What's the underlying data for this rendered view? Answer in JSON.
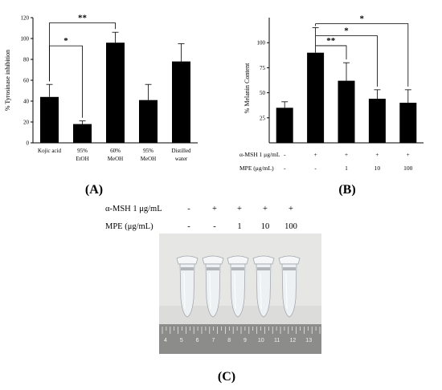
{
  "chart_data": [
    {
      "type": "bar",
      "panel": "(A)",
      "ylabel": "% Tyrosinase inhibition",
      "ylim": [
        0,
        120
      ],
      "yticks": [
        "0",
        "20",
        "40",
        "60",
        "80",
        "100",
        "120"
      ],
      "categories": [
        "Kojic acid",
        "95% EtOH",
        "60% MeOH",
        "95% MeOH",
        "Distilled water"
      ],
      "category_lines": [
        [
          "Kojic acid"
        ],
        [
          "95%",
          "EtOH"
        ],
        [
          "60%",
          "MeOH"
        ],
        [
          "95%",
          "MeOH"
        ],
        [
          "Distilled",
          "water"
        ]
      ],
      "values": [
        44,
        18,
        96,
        41,
        78
      ],
      "errors": [
        12,
        3,
        10,
        15,
        17
      ],
      "significance": [
        {
          "from": 0,
          "to": 1,
          "label": "*",
          "level": 93
        },
        {
          "from": 0,
          "to": 2,
          "label": "**",
          "level": 115
        }
      ]
    },
    {
      "type": "bar",
      "panel": "(B)",
      "ylabel": "% Melanin Content",
      "ylim": [
        0,
        125
      ],
      "yticks": [
        "25",
        "50",
        "75",
        "100"
      ],
      "ytick_values": [
        25,
        50,
        75,
        100
      ],
      "values": [
        35,
        90,
        62,
        44,
        40
      ],
      "errors": [
        6,
        25,
        18,
        9,
        13
      ],
      "rows": [
        {
          "label": "α-MSH 1 μg/mL",
          "values": [
            "-",
            "+",
            "+",
            "+",
            "+"
          ]
        },
        {
          "label": "MPE (μg/mL)",
          "values": [
            "-",
            "-",
            "1",
            "10",
            "100"
          ]
        }
      ],
      "significance": [
        {
          "from": 1,
          "to": 4,
          "label": "*",
          "level": 119
        },
        {
          "from": 1,
          "to": 3,
          "label": "*",
          "level": 107
        },
        {
          "from": 1,
          "to": 2,
          "label": "**",
          "level": 97
        }
      ]
    }
  ],
  "panel_c": {
    "label": "(C)",
    "rows": [
      {
        "label": "α-MSH 1 μg/mL",
        "values": [
          "-",
          "+",
          "+",
          "+",
          "+"
        ]
      },
      {
        "label": "MPE (μg/mL)",
        "values": [
          "-",
          "-",
          "1",
          "10",
          "100"
        ]
      }
    ],
    "ruler_numbers": [
      "4",
      "5",
      "6",
      "7",
      "8",
      "9",
      "10",
      "11",
      "12",
      "13"
    ],
    "tube_count": 5
  }
}
